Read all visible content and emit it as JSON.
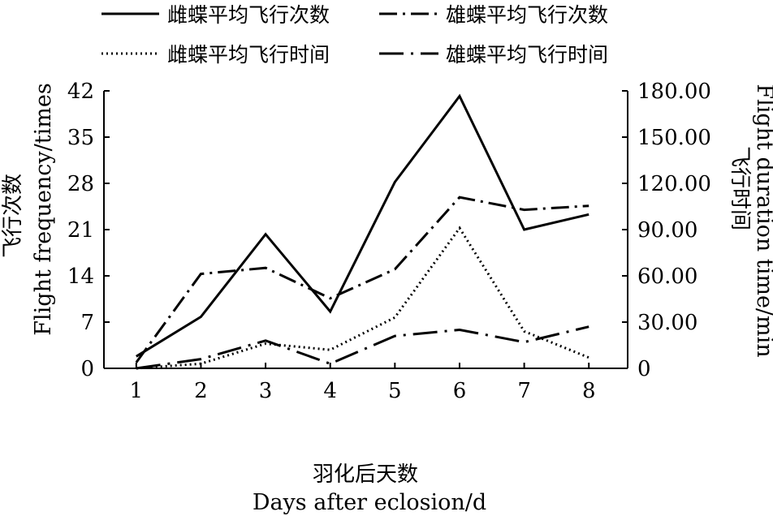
{
  "chart_data": {
    "type": "line",
    "x": [
      1,
      2,
      3,
      4,
      5,
      6,
      7,
      8
    ],
    "xlabel_cn": "羽化后天数",
    "xlabel_en": "Days after eclosion/d",
    "ylabel_left_cn": "飞行次数",
    "ylabel_left_en": "Flight frequency/times",
    "ylabel_right_cn": "飞行时间",
    "ylabel_right_en": "Flight duration time/min",
    "ylim_left": [
      0,
      42
    ],
    "yticks_left": [
      "0",
      "7",
      "14",
      "21",
      "28",
      "35",
      "42"
    ],
    "ylim_right": [
      0,
      180
    ],
    "yticks_right": [
      "0",
      "30.00",
      "60.00",
      "90.00",
      "120.00",
      "150.00",
      "180.00"
    ],
    "xticks": [
      "1",
      "2",
      "3",
      "4",
      "5",
      "6",
      "7",
      "8"
    ],
    "grid": false,
    "legend_position": "top",
    "series": [
      {
        "name": "雌蝶平均飞行次数",
        "axis": "left",
        "style": "solid",
        "values": [
          1.8,
          7.8,
          20.3,
          8.6,
          28.2,
          41.2,
          21.0,
          23.3
        ]
      },
      {
        "name": "雄蝶平均飞行次数",
        "axis": "left",
        "style": "dashdot",
        "values": [
          0.9,
          14.3,
          15.2,
          10.6,
          15.0,
          25.9,
          24.0,
          24.6
        ]
      },
      {
        "name": "雌蝶平均飞行时间",
        "axis": "right",
        "style": "dotted",
        "values": [
          0.0,
          3.0,
          16.0,
          12.0,
          33.0,
          91.0,
          24.0,
          7.0
        ]
      },
      {
        "name": "雄蝶平均飞行时间",
        "axis": "right",
        "style": "longdash-dot",
        "values": [
          0.0,
          6.0,
          18.0,
          3.0,
          21.0,
          25.0,
          17.0,
          27.0
        ]
      }
    ]
  }
}
